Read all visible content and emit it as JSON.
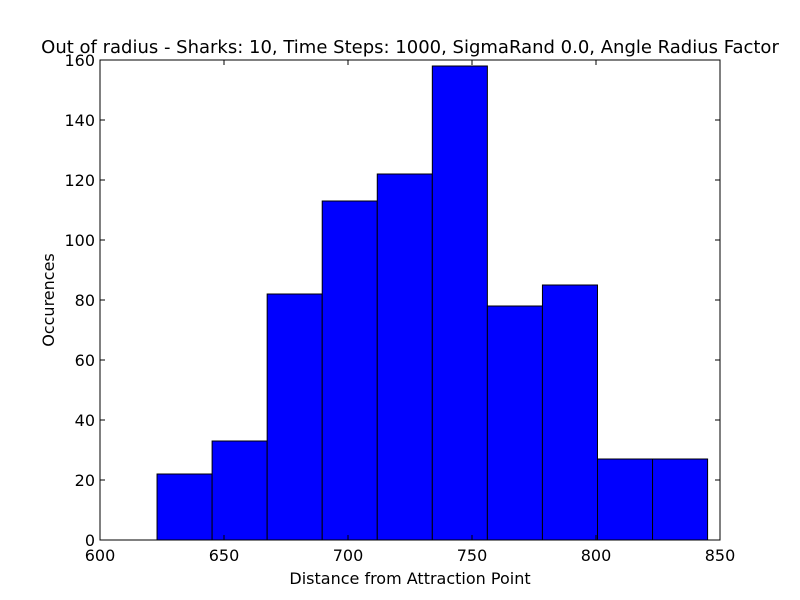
{
  "chart_data": {
    "type": "bar",
    "subtype": "histogram",
    "title": "Out of radius - Sharks: 10, Time Steps: 1000, SigmaRand 0.0, Angle Radius Factor",
    "xlabel": "Distance from Attraction Point",
    "ylabel": "Occurences",
    "xlim": [
      600,
      850
    ],
    "ylim": [
      0,
      160
    ],
    "xticks": [
      600,
      650,
      700,
      750,
      800,
      850
    ],
    "yticks": [
      0,
      20,
      40,
      60,
      80,
      100,
      120,
      140,
      160
    ],
    "bin_edges": [
      623,
      645.2,
      667.4,
      689.6,
      711.8,
      734,
      756.2,
      778.4,
      800.6,
      822.8,
      845
    ],
    "values": [
      22,
      33,
      82,
      113,
      122,
      158,
      78,
      85,
      27,
      27
    ],
    "bar_color": "#0000ff",
    "edge_color": "#000000",
    "grid": false,
    "legend": "none"
  }
}
